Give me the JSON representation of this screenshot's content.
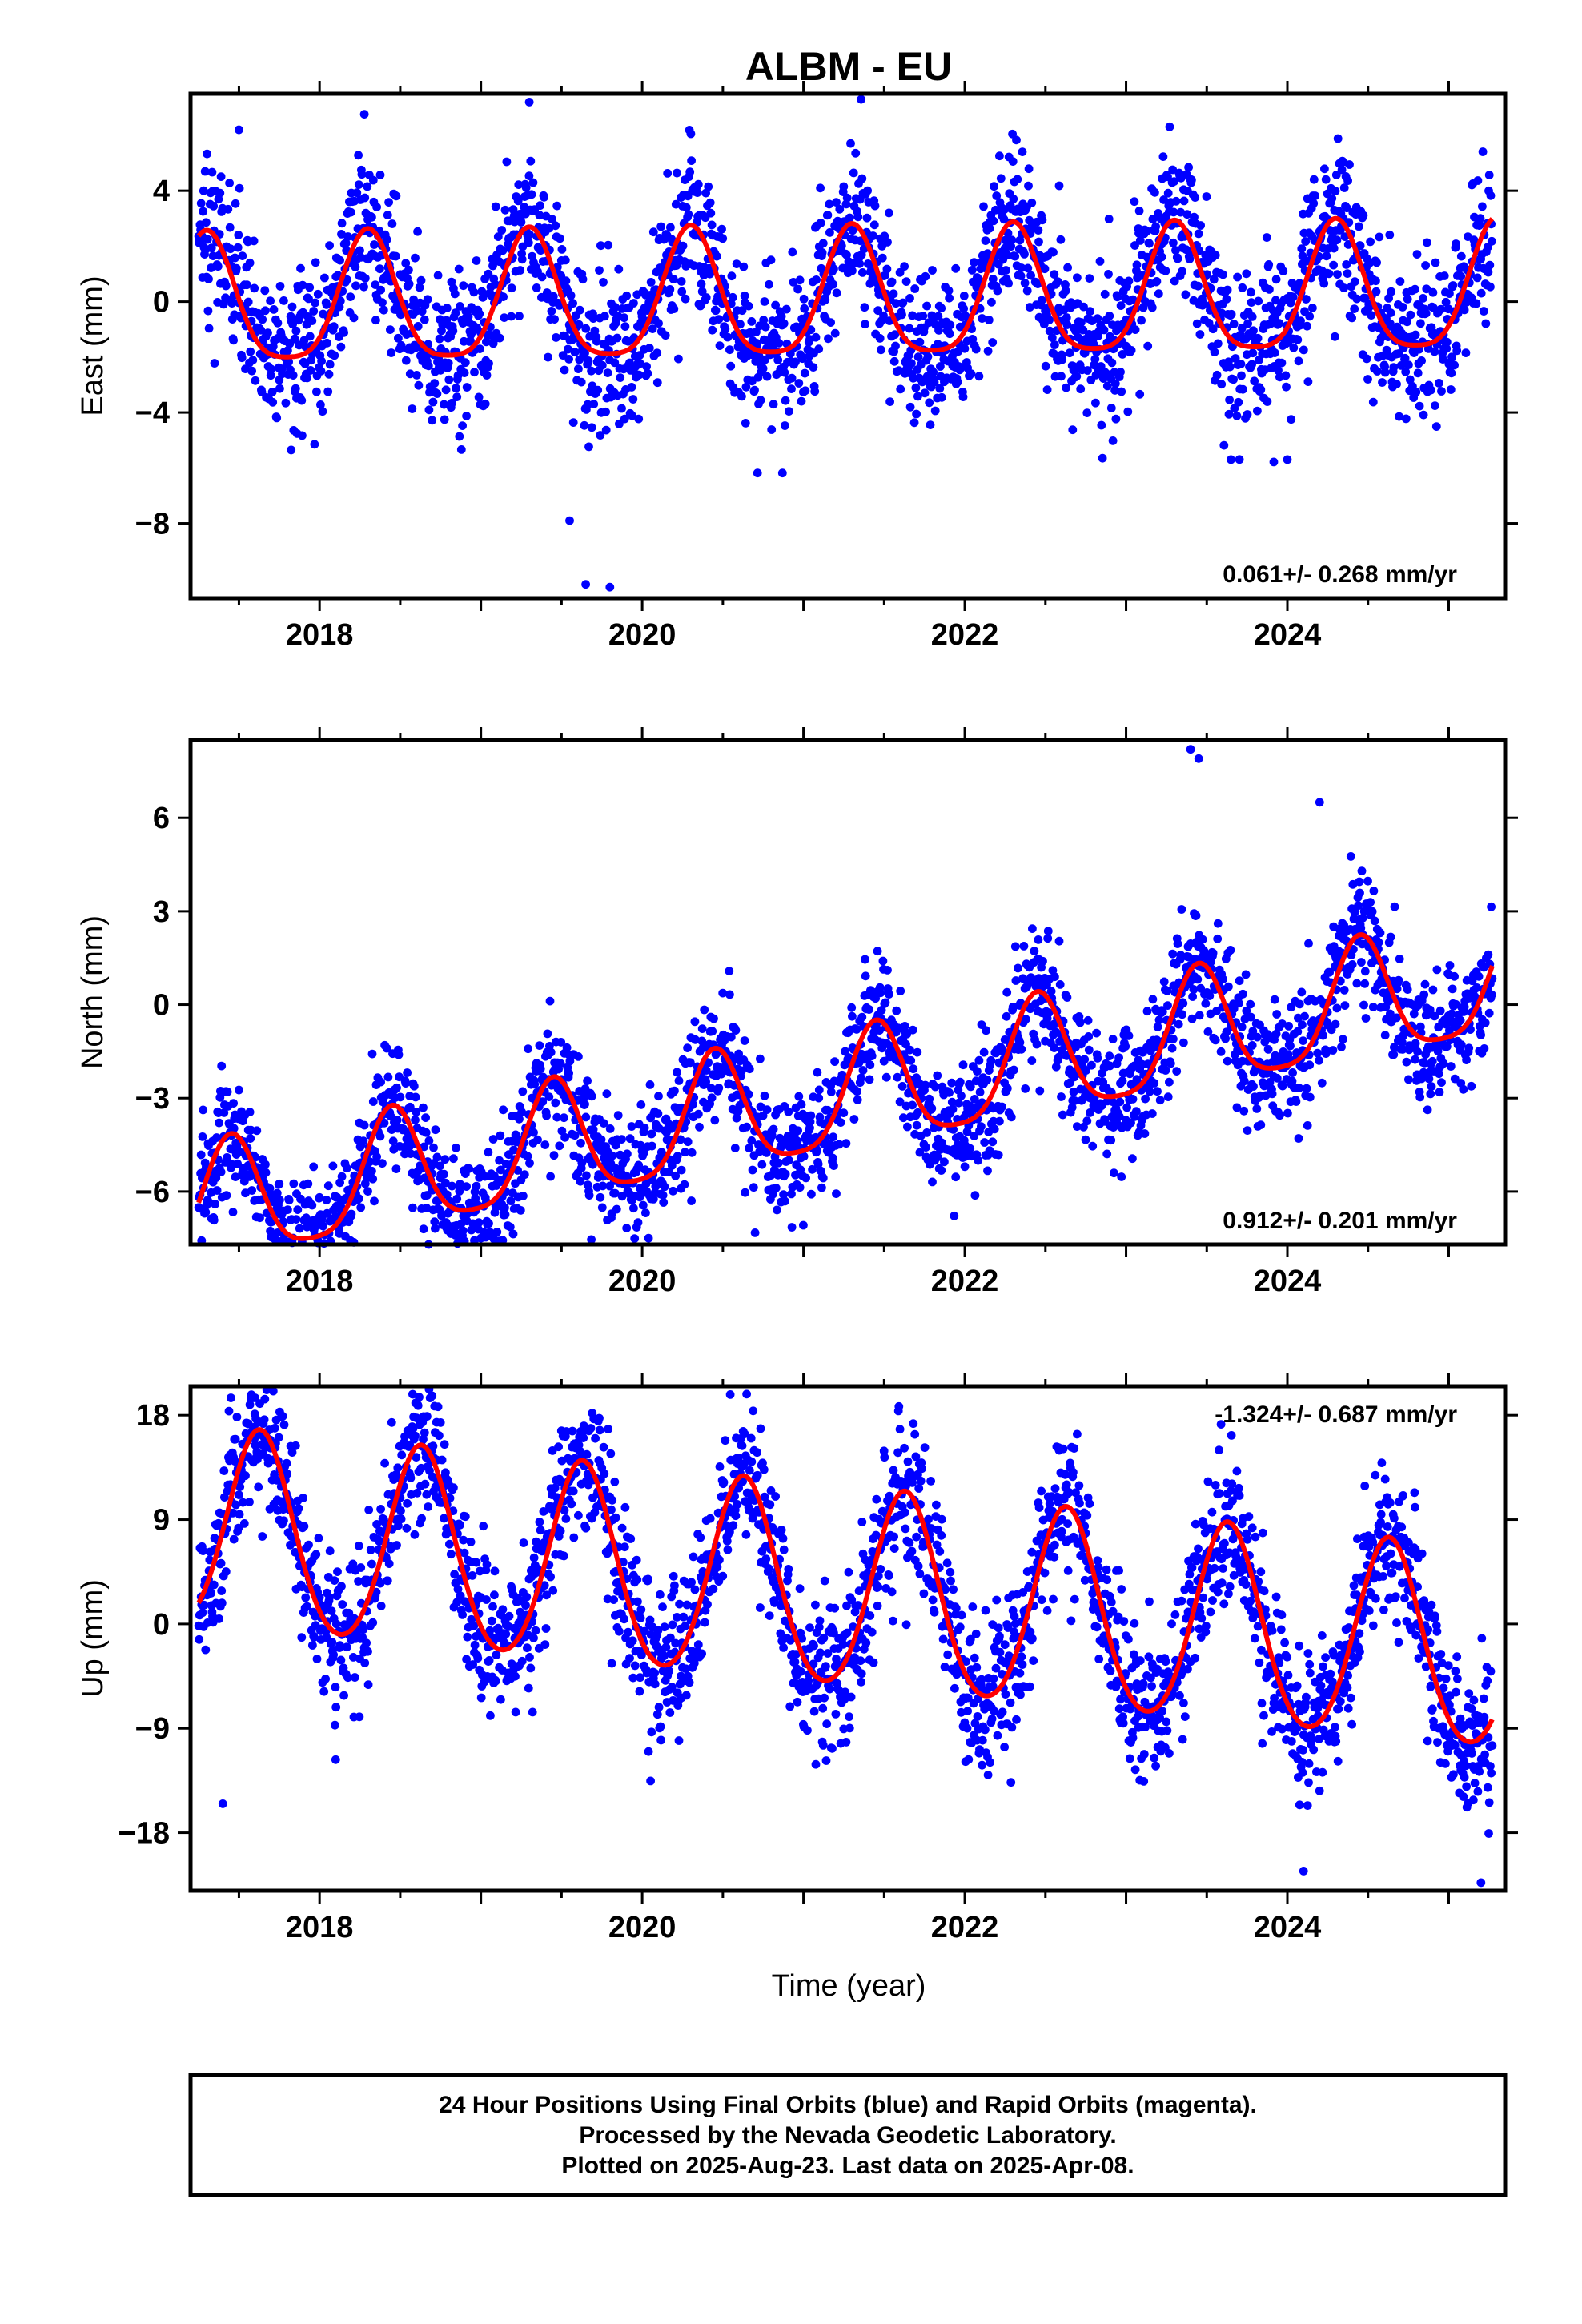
{
  "title": "ALBM - EU",
  "xlabel": "Time (year)",
  "footer": {
    "line1": "24 Hour Positions Using Final Orbits (blue) and Rapid Orbits (magenta).",
    "line2": "Processed by the Nevada Geodetic Laboratory.",
    "line3": "Plotted on 2025-Aug-23. Last data on 2025-Apr-08."
  },
  "colors": {
    "data": "#0000ff",
    "fit": "#ff0000",
    "frame": "#000000"
  },
  "chart_data": [
    {
      "type": "scatter",
      "component": "east",
      "ylabel": "East (mm)",
      "rate_label": "0.061+/- 0.268 mm/yr",
      "rate_position": "bottom-right",
      "xlim": [
        2017.2,
        2025.35
      ],
      "ylim": [
        -10.7,
        7.5
      ],
      "xticks": [
        2018,
        2020,
        2022,
        2024
      ],
      "xtick_labels": [
        "2018",
        "2020",
        "2022",
        "2024"
      ],
      "yticks": [
        -8,
        -4,
        0,
        4
      ],
      "ytick_labels": [
        "−8",
        "−4",
        "0",
        "4"
      ],
      "data_range": [
        2017.25,
        2025.27
      ],
      "model": {
        "offset": 0.0,
        "rate": 0.061,
        "ann_amp": 2.3,
        "ann_phase_year": 2017.3,
        "semi_amp": 0.5,
        "semi_phase_year": 2017.3
      },
      "noise_sd": 1.4,
      "outliers": [
        [
          2019.8,
          -10.3
        ],
        [
          2019.65,
          -10.2
        ],
        [
          2019.55,
          -7.9
        ],
        [
          2017.5,
          6.2
        ],
        [
          2019.3,
          7.2
        ],
        [
          2023.65,
          -5.7
        ],
        [
          2024.0,
          -5.7
        ]
      ]
    },
    {
      "type": "scatter",
      "component": "north",
      "ylabel": "North (mm)",
      "rate_label": "0.912+/- 0.201 mm/yr",
      "rate_position": "bottom-right",
      "xlim": [
        2017.2,
        2025.35
      ],
      "ylim": [
        -7.7,
        8.5
      ],
      "xticks": [
        2018,
        2020,
        2022,
        2024
      ],
      "xtick_labels": [
        "2018",
        "2020",
        "2022",
        "2024"
      ],
      "yticks": [
        -6,
        -3,
        0,
        3,
        6
      ],
      "ytick_labels": [
        "−6",
        "−3",
        "0",
        "3",
        "6"
      ],
      "data_range": [
        2017.25,
        2025.27
      ],
      "model": {
        "offset": -3.2,
        "rate": 0.912,
        "ann_amp": 1.9,
        "ann_phase_year": 2017.45,
        "semi_amp": 0.4,
        "semi_phase_year": 2017.45
      },
      "noise_sd": 1.0,
      "outliers": [
        [
          2023.4,
          8.2
        ],
        [
          2023.45,
          7.9
        ],
        [
          2022.0,
          -5.2
        ],
        [
          2019.1,
          -7.3
        ],
        [
          2018.0,
          -6.8
        ],
        [
          2024.2,
          6.5
        ]
      ]
    },
    {
      "type": "scatter",
      "component": "up",
      "ylabel": "Up (mm)",
      "rate_label": "-1.324+/- 0.687 mm/yr",
      "rate_position": "top-right",
      "xlim": [
        2017.2,
        2025.35
      ],
      "ylim": [
        -23.0,
        20.5
      ],
      "xticks": [
        2018,
        2020,
        2022,
        2024
      ],
      "xtick_labels": [
        "2018",
        "2020",
        "2022",
        "2024"
      ],
      "yticks": [
        -18,
        -9,
        0,
        9,
        18
      ],
      "ytick_labels": [
        "−18",
        "−9",
        "0",
        "9",
        "18"
      ],
      "data_range": [
        2017.25,
        2025.27
      ],
      "model": {
        "offset": 3.0,
        "rate": -1.324,
        "ann_amp": 8.5,
        "ann_phase_year": 2017.63,
        "semi_amp": 0.8,
        "semi_phase_year": 2017.63
      },
      "noise_sd": 3.2,
      "outliers": [
        [
          2017.4,
          -15.5
        ],
        [
          2017.45,
          19.5
        ],
        [
          2017.6,
          19.5
        ],
        [
          2024.1,
          -21.3
        ],
        [
          2025.2,
          -22.3
        ],
        [
          2018.1,
          -11.7
        ]
      ]
    }
  ]
}
